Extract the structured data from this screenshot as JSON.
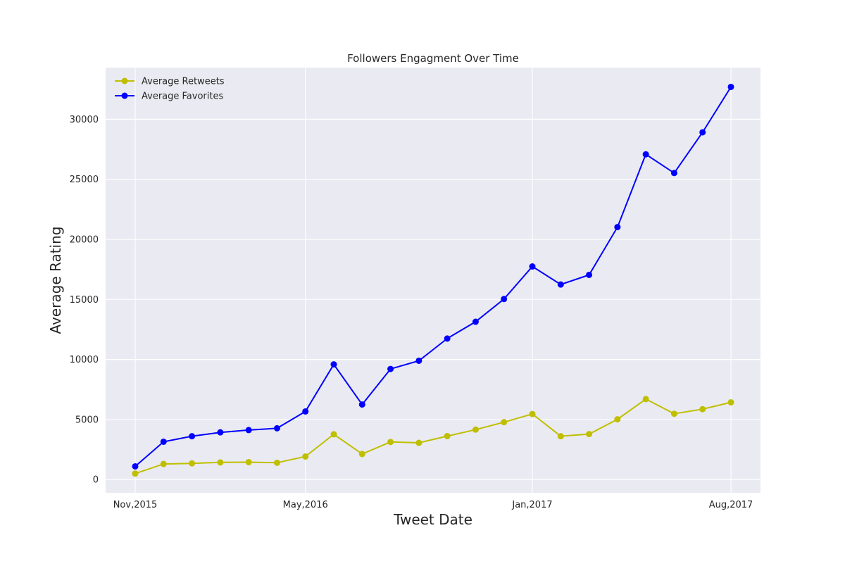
{
  "chart_data": {
    "type": "line",
    "title": "Followers Engagment Over Time",
    "xlabel": "Tweet Date",
    "ylabel": "Average Rating",
    "x": [
      "2015-11",
      "2015-12",
      "2016-01",
      "2016-02",
      "2016-03",
      "2016-04",
      "2016-05",
      "2016-06",
      "2016-07",
      "2016-08",
      "2016-09",
      "2016-10",
      "2016-11",
      "2016-12",
      "2017-01",
      "2017-02",
      "2017-03",
      "2017-04",
      "2017-05",
      "2017-06",
      "2017-07",
      "2017-08"
    ],
    "x_ticks": [
      {
        "value": "2015-11",
        "label": "Nov,2015"
      },
      {
        "value": "2016-05",
        "label": "May,2016"
      },
      {
        "value": "2017-01",
        "label": "Jan,2017"
      },
      {
        "value": "2017-08",
        "label": "Aug,2017"
      }
    ],
    "y_ticks": [
      0,
      5000,
      10000,
      15000,
      20000,
      25000,
      30000
    ],
    "ylim": [
      -1100,
      34300
    ],
    "grid": true,
    "legend_position": "top-left",
    "series": [
      {
        "name": "Average Retweets",
        "color": "#bfbf00",
        "values": [
          500,
          1300,
          1350,
          1430,
          1450,
          1400,
          1920,
          3770,
          2130,
          3130,
          3060,
          3620,
          4160,
          4780,
          5460,
          3610,
          3790,
          5020,
          6700,
          5480,
          5860,
          6430
        ]
      },
      {
        "name": "Average Favorites",
        "color": "#0000ff",
        "values": [
          1100,
          3150,
          3610,
          3930,
          4120,
          4270,
          5670,
          9590,
          6250,
          9210,
          9890,
          11740,
          13140,
          15030,
          17740,
          16240,
          17040,
          21020,
          27080,
          25520,
          28910,
          32690
        ]
      }
    ]
  }
}
